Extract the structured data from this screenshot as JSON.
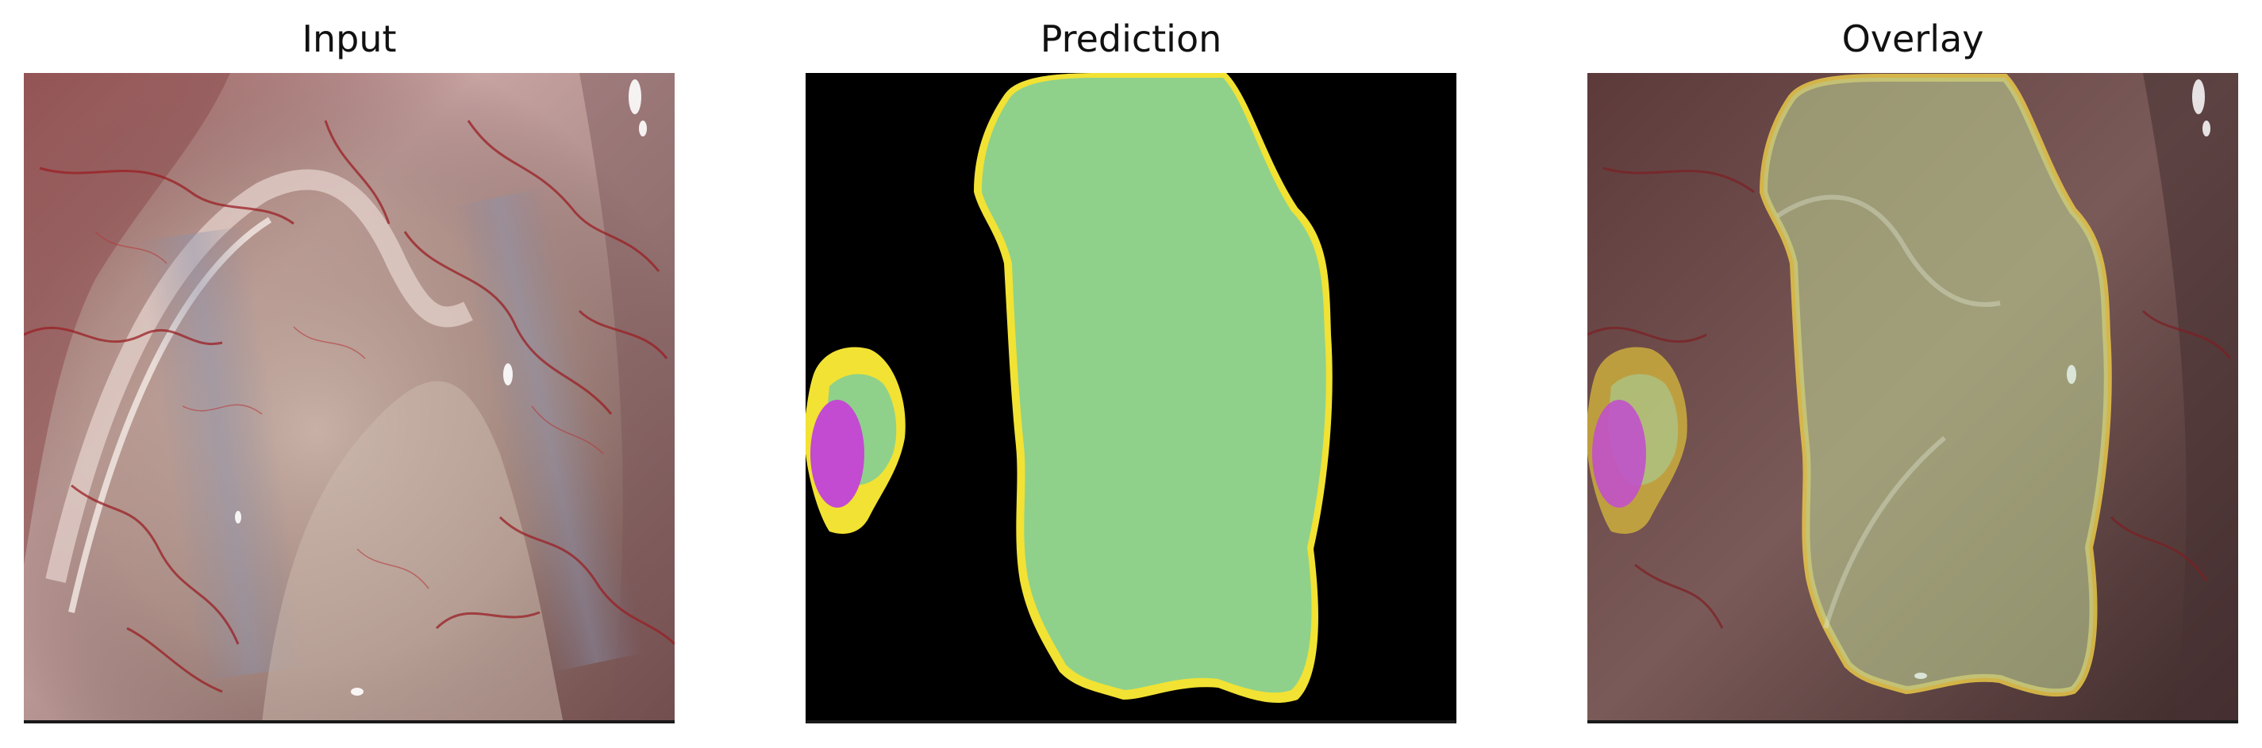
{
  "panels": [
    {
      "title": "Input"
    },
    {
      "title": "Prediction"
    },
    {
      "title": "Overlay"
    }
  ],
  "colors": {
    "background_mask": "#000000",
    "large_region": "#8fd18a",
    "region_border": "#f2e233",
    "small_region_core": "#c24bd1",
    "tissue_base": "#b88a86"
  }
}
